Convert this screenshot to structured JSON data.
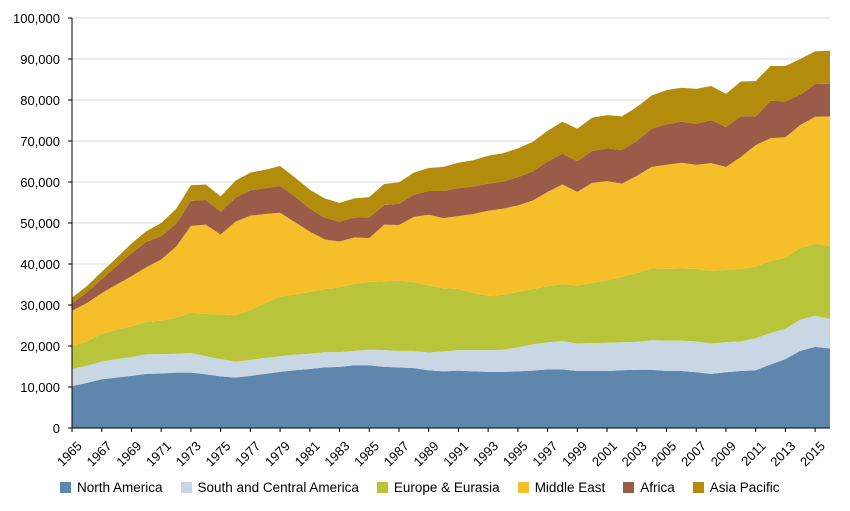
{
  "chart_data": {
    "type": "area",
    "stacked": true,
    "title": "",
    "xlabel": "",
    "ylabel": "",
    "ylim": [
      0,
      100000
    ],
    "yticks": [
      0,
      10000,
      20000,
      30000,
      40000,
      50000,
      60000,
      70000,
      80000,
      90000,
      100000
    ],
    "ytick_labels": [
      "0",
      "10,000",
      "20,000",
      "30,000",
      "40,000",
      "50,000",
      "60,000",
      "70,000",
      "80,000",
      "90,000",
      "100,000"
    ],
    "xticks": [
      "1965",
      "1967",
      "1969",
      "1971",
      "1973",
      "1975",
      "1977",
      "1979",
      "1981",
      "1983",
      "1985",
      "1987",
      "1989",
      "1991",
      "1993",
      "1995",
      "1997",
      "1999",
      "2001",
      "2003",
      "2005",
      "2007",
      "2009",
      "2011",
      "2013",
      "2015"
    ],
    "x": [
      1965,
      1966,
      1967,
      1968,
      1969,
      1970,
      1971,
      1972,
      1973,
      1974,
      1975,
      1976,
      1977,
      1978,
      1979,
      1980,
      1981,
      1982,
      1983,
      1984,
      1985,
      1986,
      1987,
      1988,
      1989,
      1990,
      1991,
      1992,
      1993,
      1994,
      1995,
      1996,
      1997,
      1998,
      1999,
      2000,
      2001,
      2002,
      2003,
      2004,
      2005,
      2006,
      2007,
      2008,
      2009,
      2010,
      2011,
      2012,
      2013,
      2014,
      2015,
      2016
    ],
    "grid": true,
    "legend_position": "bottom",
    "series": [
      {
        "name": "North America",
        "color": "#5f86ad",
        "values": [
          10200,
          11000,
          11900,
          12300,
          12700,
          13200,
          13300,
          13500,
          13500,
          13100,
          12600,
          12300,
          12700,
          13200,
          13700,
          14100,
          14400,
          14800,
          14900,
          15300,
          15300,
          14900,
          14800,
          14600,
          14100,
          13800,
          14000,
          13800,
          13700,
          13700,
          13800,
          14000,
          14300,
          14300,
          13900,
          13900,
          13900,
          14100,
          14200,
          14200,
          13900,
          13900,
          13600,
          13200,
          13600,
          13900,
          14100,
          15500,
          16800,
          18800,
          19800,
          19400
        ]
      },
      {
        "name": "South and Central America",
        "color": "#c9d6e3",
        "values": [
          4200,
          4200,
          4300,
          4500,
          4600,
          4800,
          4700,
          4600,
          4800,
          4400,
          4200,
          3900,
          3900,
          3900,
          3800,
          3800,
          3700,
          3700,
          3600,
          3500,
          3800,
          4100,
          4000,
          4200,
          4300,
          4900,
          5000,
          5200,
          5300,
          5400,
          5900,
          6400,
          6600,
          6900,
          6700,
          6800,
          6900,
          6800,
          6800,
          7200,
          7400,
          7400,
          7500,
          7400,
          7300,
          7200,
          7800,
          7700,
          7400,
          7600,
          7600,
          7200
        ]
      },
      {
        "name": "Europe & Eurasia",
        "color": "#b8c53a",
        "values": [
          5500,
          5900,
          6800,
          7200,
          7500,
          7900,
          8200,
          8800,
          9800,
          10300,
          10900,
          11300,
          12200,
          13400,
          14500,
          14700,
          15100,
          15400,
          15800,
          16400,
          16500,
          16800,
          17100,
          16800,
          16400,
          15400,
          14900,
          14000,
          13200,
          13400,
          13500,
          13500,
          13700,
          13900,
          14200,
          14700,
          15200,
          16000,
          16800,
          17500,
          17500,
          17600,
          17700,
          17700,
          17700,
          17700,
          17500,
          17500,
          17300,
          17500,
          17500,
          17800
        ]
      },
      {
        "name": "Middle East",
        "color": "#f6be29",
        "values": [
          8700,
          9400,
          9900,
          11000,
          12200,
          13300,
          14900,
          17300,
          21200,
          21800,
          19500,
          22800,
          23000,
          21700,
          20500,
          17600,
          14700,
          12100,
          11200,
          11300,
          10700,
          13800,
          13600,
          15900,
          17200,
          17100,
          17800,
          19200,
          20800,
          21000,
          21100,
          21600,
          23000,
          24300,
          22800,
          24400,
          24200,
          22700,
          23700,
          24800,
          25400,
          25800,
          25400,
          26300,
          25100,
          27300,
          29600,
          30000,
          29400,
          30000,
          31000,
          31600
        ]
      },
      {
        "name": "Africa",
        "color": "#9a5b48",
        "values": [
          1800,
          2600,
          3400,
          4500,
          5600,
          6200,
          5700,
          5600,
          6100,
          6000,
          5500,
          5900,
          6200,
          6300,
          6500,
          6300,
          5600,
          5300,
          4800,
          4800,
          5100,
          4800,
          5200,
          5400,
          5800,
          6600,
          6800,
          6700,
          6600,
          6600,
          6900,
          7100,
          7400,
          7500,
          7500,
          7800,
          8000,
          8200,
          8500,
          9300,
          9900,
          10000,
          10000,
          10500,
          9700,
          9900,
          7000,
          9100,
          8800,
          7400,
          8000,
          8000
        ]
      },
      {
        "name": "Asia Pacific",
        "color": "#b48c0b",
        "values": [
          1400,
          1500,
          1800,
          2000,
          2400,
          2600,
          3200,
          3600,
          3800,
          3800,
          3800,
          4100,
          4300,
          4500,
          4900,
          4600,
          4600,
          4700,
          4600,
          4700,
          4900,
          5100,
          5200,
          5400,
          5600,
          5900,
          6200,
          6400,
          6800,
          6900,
          7000,
          7200,
          7500,
          7800,
          7900,
          8100,
          8100,
          8200,
          8300,
          8100,
          8300,
          8300,
          8500,
          8300,
          8100,
          8500,
          8600,
          8500,
          8600,
          8700,
          8000,
          8000
        ]
      }
    ]
  }
}
